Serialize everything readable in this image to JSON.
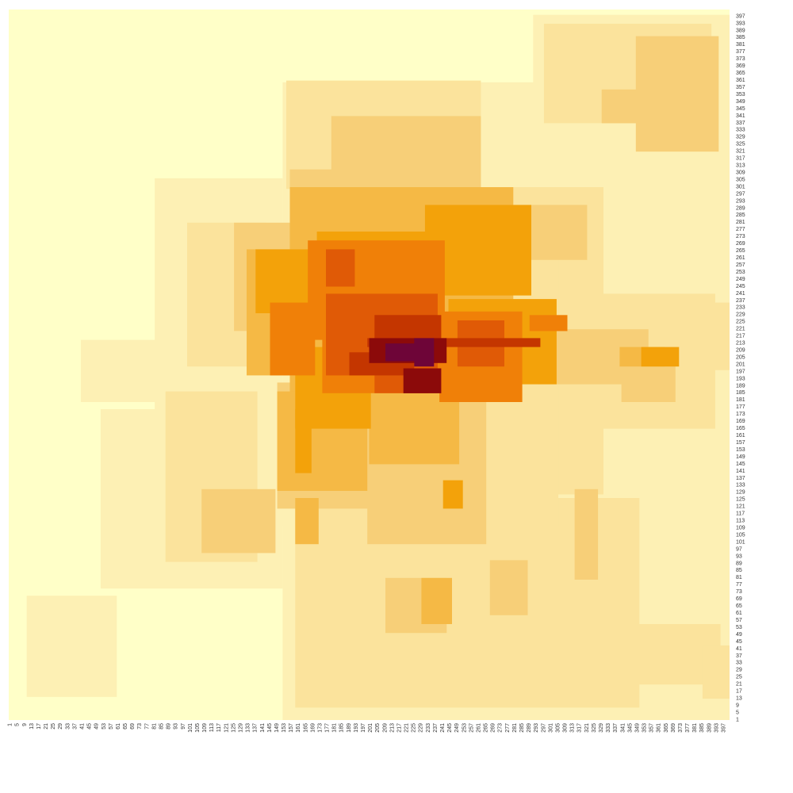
{
  "chart_data": {
    "type": "heatmap",
    "title": "",
    "xlabel": "",
    "ylabel": "",
    "x_range": [
      1,
      400
    ],
    "y_range": [
      1,
      400
    ],
    "x_tick_labels": [
      "1",
      "5",
      "9",
      "13",
      "17",
      "21",
      "25",
      "29",
      "33",
      "37",
      "41",
      "45",
      "49",
      "53",
      "57",
      "61",
      "65",
      "69",
      "73",
      "77",
      "81",
      "85",
      "89",
      "93",
      "97",
      "101",
      "105",
      "109",
      "113",
      "117",
      "121",
      "125",
      "129",
      "133",
      "137",
      "141",
      "145",
      "149",
      "153",
      "157",
      "161",
      "165",
      "169",
      "173",
      "177",
      "181",
      "185",
      "189",
      "193",
      "197",
      "201",
      "205",
      "209",
      "213",
      "217",
      "221",
      "225",
      "229",
      "233",
      "237",
      "241",
      "245",
      "249",
      "253",
      "257",
      "261",
      "265",
      "269",
      "273",
      "277",
      "281",
      "285",
      "289",
      "293",
      "297",
      "301",
      "305",
      "309",
      "313",
      "317",
      "321",
      "325",
      "329",
      "333",
      "337",
      "341",
      "345",
      "349",
      "353",
      "357",
      "361",
      "365",
      "369",
      "373",
      "377",
      "381",
      "385",
      "389",
      "393",
      "397"
    ],
    "y_tick_labels": [
      "1",
      "5",
      "9",
      "13",
      "17",
      "21",
      "25",
      "29",
      "33",
      "37",
      "41",
      "45",
      "49",
      "53",
      "57",
      "61",
      "65",
      "69",
      "73",
      "77",
      "81",
      "85",
      "89",
      "93",
      "97",
      "101",
      "105",
      "109",
      "113",
      "117",
      "121",
      "125",
      "129",
      "133",
      "137",
      "141",
      "145",
      "149",
      "153",
      "157",
      "161",
      "165",
      "169",
      "173",
      "177",
      "181",
      "185",
      "189",
      "193",
      "197",
      "201",
      "205",
      "209",
      "213",
      "217",
      "221",
      "225",
      "229",
      "233",
      "237",
      "241",
      "245",
      "249",
      "253",
      "257",
      "261",
      "265",
      "269",
      "273",
      "277",
      "281",
      "285",
      "289",
      "293",
      "297",
      "301",
      "305",
      "309",
      "313",
      "317",
      "321",
      "325",
      "329",
      "333",
      "337",
      "341",
      "345",
      "349",
      "353",
      "357",
      "361",
      "365",
      "369",
      "373",
      "377",
      "381",
      "385",
      "389",
      "393",
      "397"
    ],
    "palette": [
      "#ffffc8",
      "#fdf0b4",
      "#fbe39c",
      "#f7cf78",
      "#f5b945",
      "#f3a20a",
      "#f08008",
      "#e05a06",
      "#c43600",
      "#8c0a0a",
      "#6e0538"
    ],
    "background_level": 0,
    "cells": [
      {
        "x": [
          153,
          402
        ],
        "y": [
          1,
          359
        ],
        "level": 1
      },
      {
        "x": [
          52,
          152
        ],
        "y": [
          75,
          175
        ],
        "level": 1
      },
      {
        "x": [
          11,
          60
        ],
        "y": [
          14,
          70
        ],
        "level": 1
      },
      {
        "x": [
          292,
          402
        ],
        "y": [
          132,
          397
        ],
        "level": 1
      },
      {
        "x": [
          82,
          152
        ],
        "y": [
          110,
          305
        ],
        "level": 1
      },
      {
        "x": [
          41,
          135
        ],
        "y": [
          180,
          214
        ],
        "level": 1
      },
      {
        "x": [
          335,
          395
        ],
        "y": [
          21,
          54
        ],
        "level": 2
      },
      {
        "x": [
          160,
          350
        ],
        "y": [
          8,
          125
        ],
        "level": 2
      },
      {
        "x": [
          298,
          390
        ],
        "y": [
          392,
          337
        ],
        "level": 2
      },
      {
        "x": [
          343,
          402
        ],
        "y": [
          198,
          235
        ],
        "level": 2
      },
      {
        "x": [
          88,
          138
        ],
        "y": [
          90,
          185
        ],
        "level": 2
      },
      {
        "x": [
          100,
          143
        ],
        "y": [
          200,
          280
        ],
        "level": 2
      },
      {
        "x": [
          155,
          262
        ],
        "y": [
          300,
          360
        ],
        "level": 2
      },
      {
        "x": [
          210,
          330
        ],
        "y": [
          128,
          300
        ],
        "level": 2
      },
      {
        "x": [
          262,
          305
        ],
        "y": [
          110,
          270
        ],
        "level": 2
      },
      {
        "x": [
          330,
          392
        ],
        "y": [
          165,
          240
        ],
        "level": 2
      },
      {
        "x": [
          386,
          400
        ],
        "y": [
          13,
          42
        ],
        "level": 2
      },
      {
        "x": [
          349,
          394
        ],
        "y": [
          321,
          385
        ],
        "level": 3
      },
      {
        "x": [
          330,
          360
        ],
        "y": [
          337,
          355
        ],
        "level": 3
      },
      {
        "x": [
          180,
          262
        ],
        "y": [
          300,
          340
        ],
        "level": 3
      },
      {
        "x": [
          157,
          230
        ],
        "y": [
          250,
          310
        ],
        "level": 3
      },
      {
        "x": [
          126,
          160
        ],
        "y": [
          220,
          280
        ],
        "level": 3
      },
      {
        "x": [
          108,
          148
        ],
        "y": [
          95,
          130
        ],
        "level": 3
      },
      {
        "x": [
          150,
          200
        ],
        "y": [
          120,
          190
        ],
        "level": 3
      },
      {
        "x": [
          200,
          265
        ],
        "y": [
          100,
          190
        ],
        "level": 3
      },
      {
        "x": [
          210,
          243
        ],
        "y": [
          50,
          80
        ],
        "level": 3
      },
      {
        "x": [
          268,
          288
        ],
        "y": [
          60,
          90
        ],
        "level": 3
      },
      {
        "x": [
          315,
          327
        ],
        "y": [
          80,
          130
        ],
        "level": 3
      },
      {
        "x": [
          291,
          321
        ],
        "y": [
          260,
          290
        ],
        "level": 3
      },
      {
        "x": [
          341,
          370
        ],
        "y": [
          180,
          205
        ],
        "level": 3
      },
      {
        "x": [
          295,
          355
        ],
        "y": [
          190,
          220
        ],
        "level": 3
      },
      {
        "x": [
          157,
          280
        ],
        "y": [
          185,
          300
        ],
        "level": 4
      },
      {
        "x": [
          133,
          157
        ],
        "y": [
          195,
          265
        ],
        "level": 4
      },
      {
        "x": [
          150,
          199
        ],
        "y": [
          130,
          185
        ],
        "level": 4
      },
      {
        "x": [
          201,
          250
        ],
        "y": [
          145,
          195
        ],
        "level": 4
      },
      {
        "x": [
          230,
          246
        ],
        "y": [
          55,
          80
        ],
        "level": 4
      },
      {
        "x": [
          160,
          172
        ],
        "y": [
          100,
          125
        ],
        "level": 4
      },
      {
        "x": [
          340,
          364
        ],
        "y": [
          200,
          210
        ],
        "level": 4
      },
      {
        "x": [
          232,
          290
        ],
        "y": [
          240,
          290
        ],
        "level": 5
      },
      {
        "x": [
          172,
          233
        ],
        "y": [
          230,
          275
        ],
        "level": 5
      },
      {
        "x": [
          138,
          176
        ],
        "y": [
          230,
          265
        ],
        "level": 5
      },
      {
        "x": [
          160,
          201
        ],
        "y": [
          165,
          210
        ],
        "level": 5
      },
      {
        "x": [
          245,
          304
        ],
        "y": [
          190,
          237
        ],
        "level": 5
      },
      {
        "x": [
          160,
          168
        ],
        "y": [
          140,
          175
        ],
        "level": 5
      },
      {
        "x": [
          242,
          252
        ],
        "y": [
          120,
          135
        ],
        "level": 5
      },
      {
        "x": [
          352,
          372
        ],
        "y": [
          200,
          210
        ],
        "level": 5
      },
      {
        "x": [
          142,
          168
        ],
        "y": [
          245,
          255
        ],
        "level": 5
      },
      {
        "x": [
          167,
          242
        ],
        "y": [
          215,
          270
        ],
        "level": 6
      },
      {
        "x": [
          240,
          285
        ],
        "y": [
          180,
          230
        ],
        "level": 6
      },
      {
        "x": [
          146,
          170
        ],
        "y": [
          195,
          235
        ],
        "level": 6
      },
      {
        "x": [
          175,
          240
        ],
        "y": [
          185,
          215
        ],
        "level": 6
      },
      {
        "x": [
          290,
          310
        ],
        "y": [
          220,
          228
        ],
        "level": 6
      },
      {
        "x": [
          177,
          238
        ],
        "y": [
          195,
          240
        ],
        "level": 7
      },
      {
        "x": [
          204,
          233
        ],
        "y": [
          185,
          200
        ],
        "level": 7
      },
      {
        "x": [
          250,
          275
        ],
        "y": [
          200,
          225
        ],
        "level": 7
      },
      {
        "x": [
          177,
          192
        ],
        "y": [
          245,
          265
        ],
        "level": 7
      },
      {
        "x": [
          204,
          240
        ],
        "y": [
          210,
          228
        ],
        "level": 8
      },
      {
        "x": [
          190,
          225
        ],
        "y": [
          195,
          207
        ],
        "level": 8
      },
      {
        "x": [
          200,
          295
        ],
        "y": [
          211,
          215
        ],
        "level": 8
      },
      {
        "x": [
          201,
          243
        ],
        "y": [
          202,
          215
        ],
        "level": 9
      },
      {
        "x": [
          220,
          240
        ],
        "y": [
          185,
          198
        ],
        "level": 9
      },
      {
        "x": [
          210,
          234
        ],
        "y": [
          203,
          212
        ],
        "level": 10
      },
      {
        "x": [
          226,
          236
        ],
        "y": [
          200,
          215
        ],
        "level": 10
      }
    ]
  }
}
